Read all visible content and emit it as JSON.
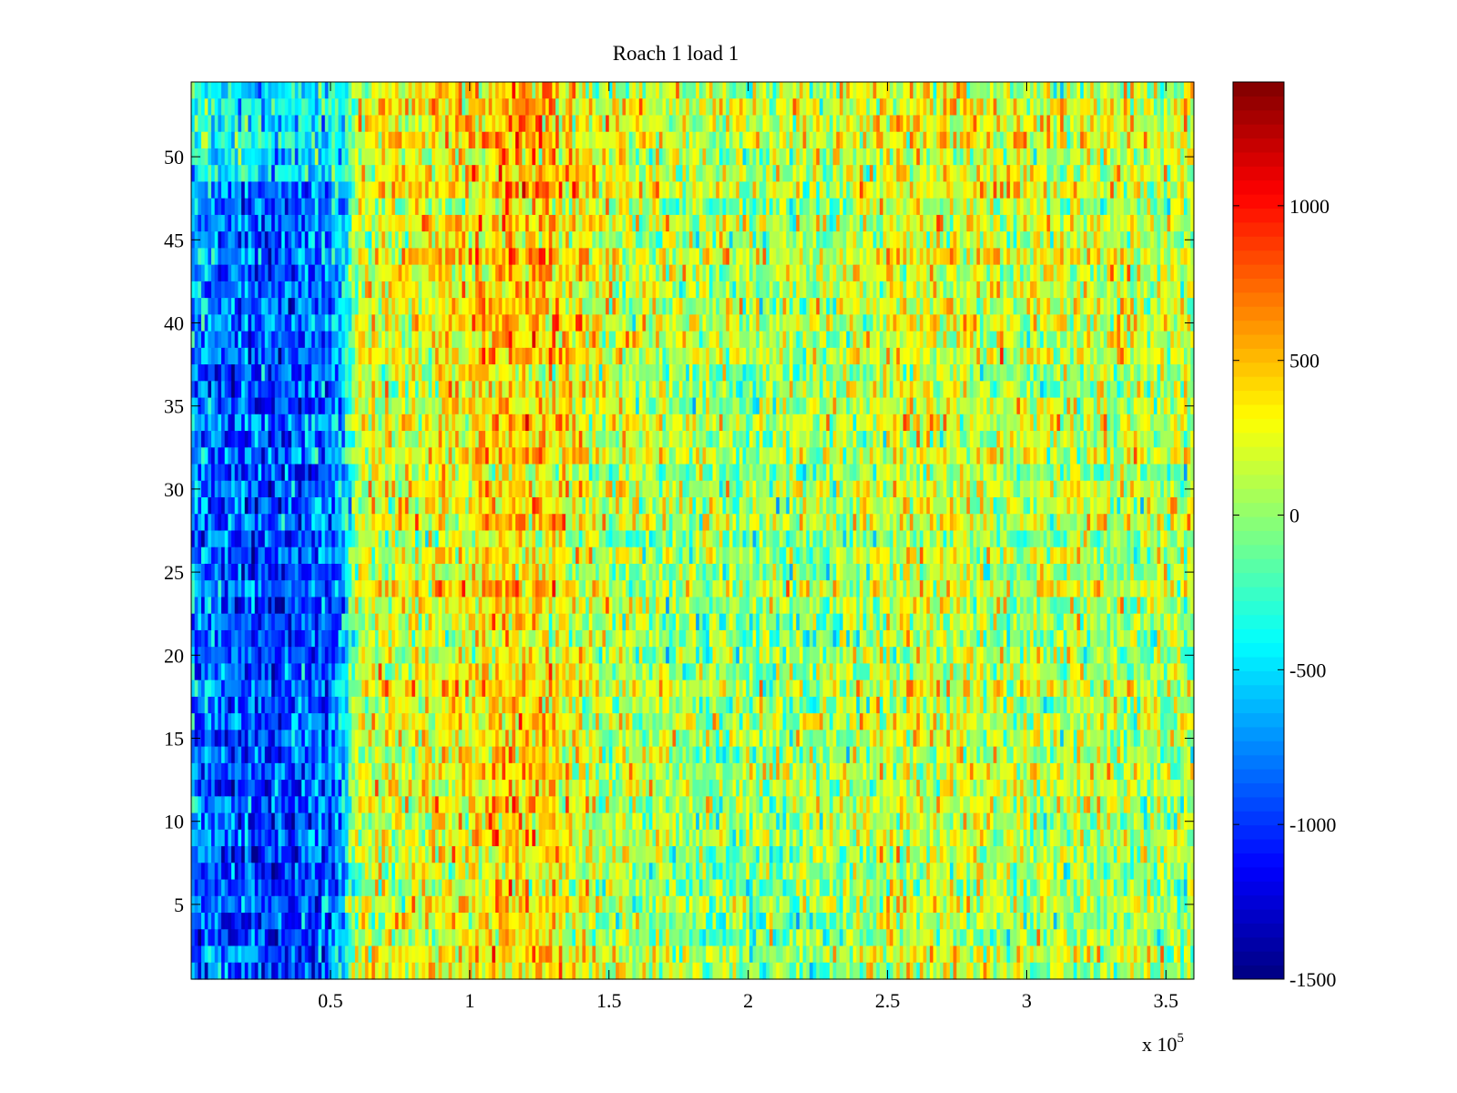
{
  "chart_data": {
    "type": "heatmap",
    "title": "Roach 1 load 1",
    "xlabel": "",
    "ylabel": "",
    "x_exponent_label": {
      "base": "x 10",
      "exp": "5"
    },
    "xlim": [
      0,
      360000
    ],
    "ylim": [
      0.5,
      54.5
    ],
    "x_ticks": [
      50000,
      100000,
      150000,
      200000,
      250000,
      300000,
      350000
    ],
    "x_tick_labels": [
      "0.5",
      "1",
      "1.5",
      "2",
      "2.5",
      "3",
      "3.5"
    ],
    "y_ticks": [
      5,
      10,
      15,
      20,
      25,
      30,
      35,
      40,
      45,
      50
    ],
    "y_tick_labels": [
      "5",
      "10",
      "15",
      "20",
      "25",
      "30",
      "35",
      "40",
      "45",
      "50"
    ],
    "rows": 54,
    "colorbar": {
      "colormap": "jet",
      "clim": [
        -1500,
        1400
      ],
      "ticks": [
        -1500,
        -1000,
        -500,
        0,
        500,
        1000
      ],
      "tick_labels": [
        "-1500",
        "-1000",
        "-500",
        "0",
        "500",
        "1000"
      ]
    },
    "column_profile": {
      "description_units": "mean value per x-region (approximate)",
      "x": [
        0,
        10000,
        30000,
        50000,
        55000,
        60000,
        80000,
        100000,
        115000,
        130000,
        150000,
        170000,
        200000,
        230000,
        262000,
        275000,
        300000,
        330000,
        360000
      ],
      "mean": [
        -700,
        -850,
        -950,
        -800,
        -500,
        180,
        260,
        320,
        480,
        400,
        150,
        80,
        20,
        60,
        230,
        200,
        120,
        130,
        100
      ]
    }
  }
}
